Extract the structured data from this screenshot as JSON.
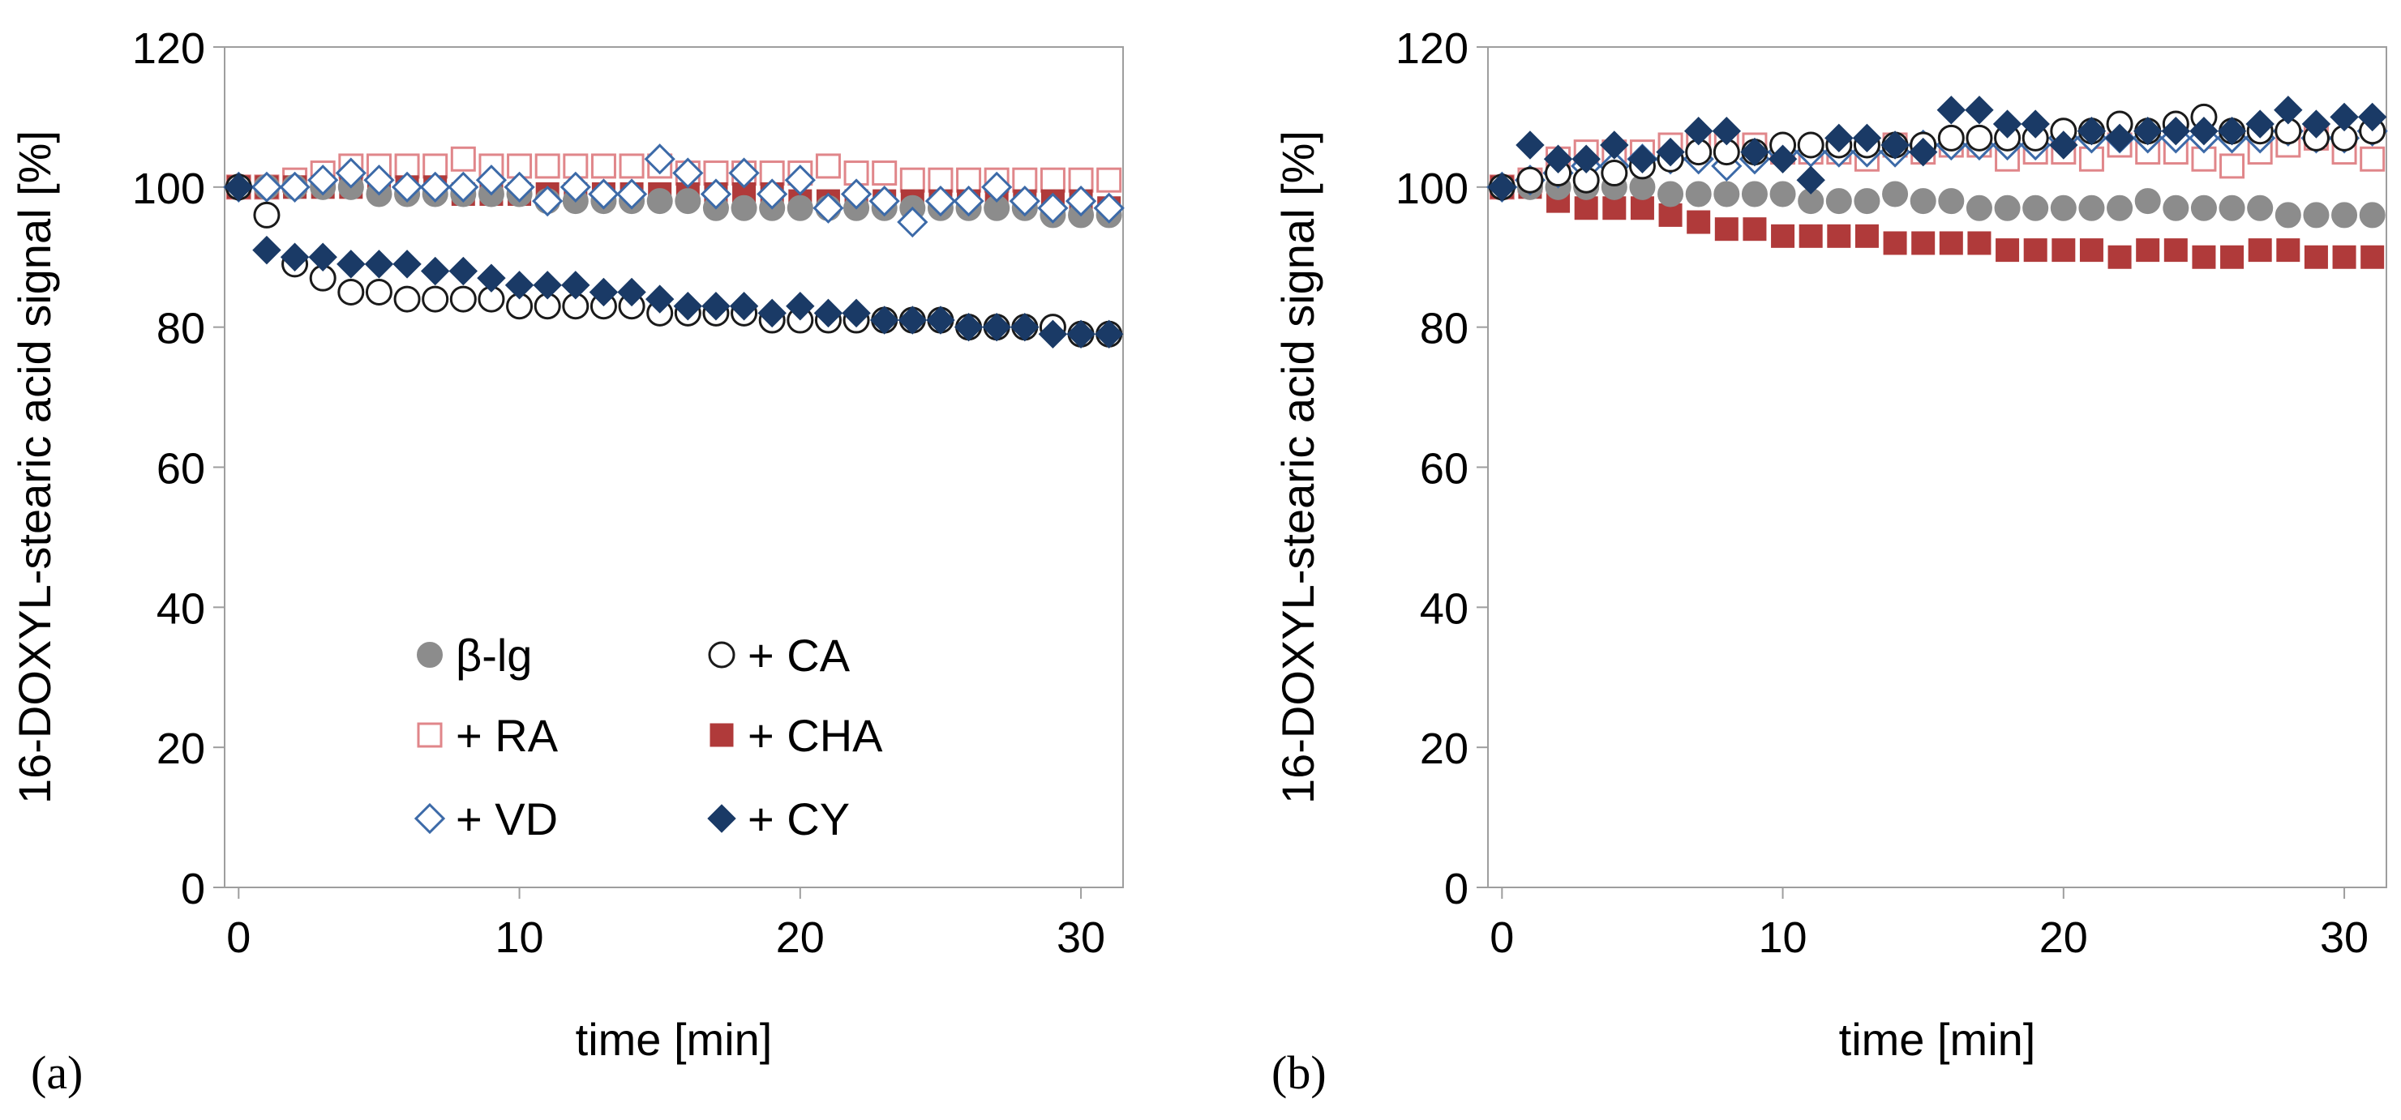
{
  "panel_labels": [
    "(a)",
    "(b)"
  ],
  "legend": [
    {
      "key": "blg",
      "label": "β-lg",
      "marker": "circle-filled",
      "color": "#8c8c8c"
    },
    {
      "key": "ca",
      "label": "+ CA",
      "marker": "circle-open",
      "color": "#1a1a1a"
    },
    {
      "key": "ra",
      "label": "+ RA",
      "marker": "square-open",
      "color": "#e0868a"
    },
    {
      "key": "cha",
      "label": "+ CHA",
      "marker": "square-filled",
      "color": "#b03a3a"
    },
    {
      "key": "vd",
      "label": "+ VD",
      "marker": "diamond-open",
      "color": "#3c6aa8"
    },
    {
      "key": "cy",
      "label": "+ CY",
      "marker": "diamond-filled",
      "color": "#1a3a66"
    }
  ],
  "chart_data": [
    {
      "type": "scatter",
      "panel": "(a)",
      "xlabel": "time [min]",
      "ylabel": "16-DOXYL-stearic acid signal [%]",
      "xlim": [
        -0.5,
        31.5
      ],
      "ylim": [
        0,
        120
      ],
      "xticks": [
        0,
        10,
        20,
        30
      ],
      "yticks": [
        0,
        20,
        40,
        60,
        80,
        100,
        120
      ],
      "grid": false,
      "legend_position": "bottom-center inside",
      "x": [
        0,
        1,
        2,
        3,
        4,
        5,
        6,
        7,
        8,
        9,
        10,
        11,
        12,
        13,
        14,
        15,
        16,
        17,
        18,
        19,
        20,
        21,
        22,
        23,
        24,
        25,
        26,
        27,
        28,
        29,
        30,
        31
      ],
      "series": [
        {
          "name": "β-lg",
          "values": [
            100,
            100,
            100,
            100,
            100,
            99,
            99,
            99,
            99,
            99,
            99,
            98,
            98,
            98,
            98,
            98,
            98,
            97,
            97,
            97,
            97,
            97,
            97,
            97,
            97,
            97,
            97,
            97,
            97,
            96,
            96,
            96
          ]
        },
        {
          "name": "+ CA",
          "values": [
            100,
            96,
            89,
            87,
            85,
            85,
            84,
            84,
            84,
            84,
            83,
            83,
            83,
            83,
            83,
            82,
            82,
            82,
            82,
            81,
            81,
            81,
            81,
            81,
            81,
            81,
            80,
            80,
            80,
            80,
            79,
            79
          ]
        },
        {
          "name": "+ RA",
          "values": [
            100,
            100,
            101,
            102,
            103,
            103,
            103,
            103,
            104,
            103,
            103,
            103,
            103,
            103,
            103,
            103,
            102,
            102,
            102,
            102,
            102,
            103,
            102,
            102,
            101,
            101,
            101,
            101,
            101,
            101,
            101,
            101
          ]
        },
        {
          "name": "+ CHA",
          "values": [
            100,
            100,
            100,
            100,
            100,
            100,
            100,
            100,
            99,
            99,
            99,
            99,
            99,
            99,
            99,
            99,
            99,
            99,
            99,
            99,
            98,
            98,
            98,
            98,
            98,
            98,
            98,
            98,
            98,
            98,
            98,
            97
          ]
        },
        {
          "name": "+ VD",
          "values": [
            100,
            100,
            100,
            101,
            102,
            101,
            100,
            100,
            100,
            101,
            100,
            98,
            100,
            99,
            99,
            104,
            102,
            99,
            102,
            99,
            101,
            97,
            99,
            98,
            95,
            98,
            98,
            100,
            98,
            97,
            98,
            97
          ]
        },
        {
          "name": "+ CY",
          "values": [
            100,
            91,
            90,
            90,
            89,
            89,
            89,
            88,
            88,
            87,
            86,
            86,
            86,
            85,
            85,
            84,
            83,
            83,
            83,
            82,
            83,
            82,
            82,
            81,
            81,
            81,
            80,
            80,
            80,
            79,
            79,
            79
          ]
        }
      ]
    },
    {
      "type": "scatter",
      "panel": "(b)",
      "xlabel": "time [min]",
      "ylabel": "16-DOXYL-stearic acid signal [%]",
      "xlim": [
        -0.5,
        31.5
      ],
      "ylim": [
        0,
        120
      ],
      "xticks": [
        0,
        10,
        20,
        30
      ],
      "yticks": [
        0,
        20,
        40,
        60,
        80,
        100,
        120
      ],
      "grid": false,
      "x": [
        0,
        1,
        2,
        3,
        4,
        5,
        6,
        7,
        8,
        9,
        10,
        11,
        12,
        13,
        14,
        15,
        16,
        17,
        18,
        19,
        20,
        21,
        22,
        23,
        24,
        25,
        26,
        27,
        28,
        29,
        30,
        31
      ],
      "series": [
        {
          "name": "β-lg",
          "values": [
            100,
            100,
            100,
            100,
            100,
            100,
            99,
            99,
            99,
            99,
            99,
            98,
            98,
            98,
            99,
            98,
            98,
            97,
            97,
            97,
            97,
            97,
            97,
            98,
            97,
            97,
            97,
            97,
            96,
            96,
            96,
            96
          ]
        },
        {
          "name": "+ CA",
          "values": [
            100,
            101,
            102,
            101,
            102,
            103,
            104,
            105,
            105,
            105,
            106,
            106,
            106,
            106,
            106,
            106,
            107,
            107,
            107,
            107,
            108,
            108,
            109,
            108,
            109,
            110,
            108,
            108,
            108,
            107,
            107,
            108
          ]
        },
        {
          "name": "+ RA",
          "values": [
            100,
            101,
            104,
            105,
            105,
            105,
            106,
            106,
            106,
            106,
            105,
            105,
            105,
            104,
            106,
            105,
            106,
            106,
            104,
            105,
            105,
            104,
            106,
            105,
            105,
            104,
            103,
            105,
            106,
            107,
            105,
            104
          ]
        },
        {
          "name": "+ CHA",
          "values": [
            100,
            100,
            98,
            97,
            97,
            97,
            96,
            95,
            94,
            94,
            93,
            93,
            93,
            93,
            92,
            92,
            92,
            92,
            91,
            91,
            91,
            91,
            90,
            91,
            91,
            90,
            90,
            91,
            91,
            90,
            90,
            90
          ]
        },
        {
          "name": "+ VD",
          "values": [
            100,
            101,
            102,
            103,
            103,
            104,
            104,
            104,
            103,
            104,
            105,
            105,
            105,
            105,
            105,
            106,
            106,
            106,
            106,
            106,
            107,
            107,
            107,
            107,
            107,
            107,
            107,
            107,
            108,
            107,
            107,
            108
          ]
        },
        {
          "name": "+ CY",
          "values": [
            100,
            106,
            104,
            104,
            106,
            104,
            105,
            108,
            108,
            105,
            104,
            101,
            107,
            107,
            106,
            105,
            111,
            111,
            109,
            109,
            106,
            108,
            107,
            108,
            108,
            108,
            108,
            109,
            111,
            109,
            110,
            110
          ]
        }
      ]
    }
  ]
}
